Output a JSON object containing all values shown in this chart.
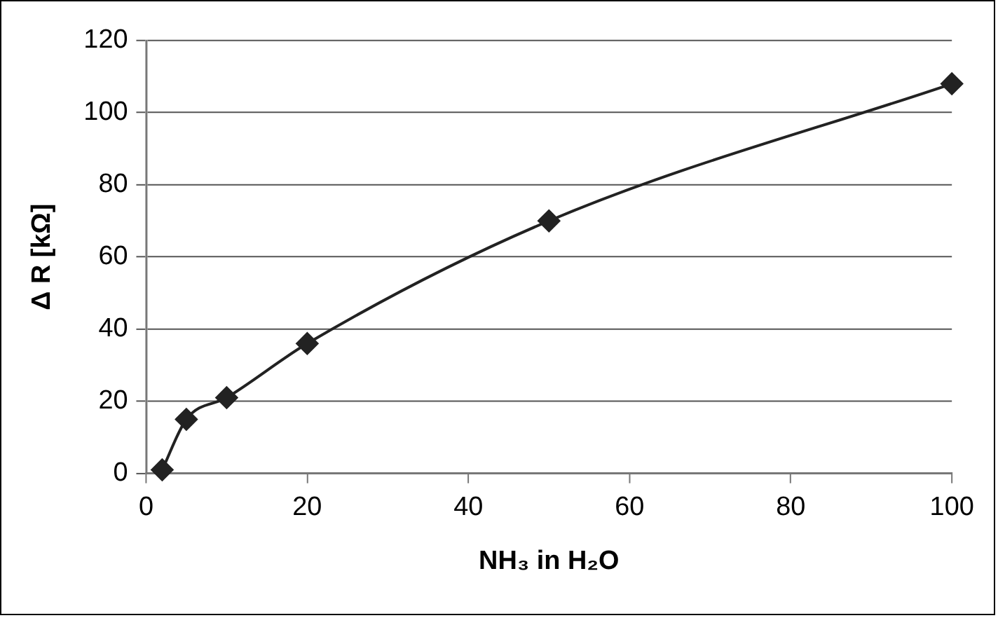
{
  "chart_data": {
    "type": "line",
    "xlabel": "NH₃ in H₂O",
    "ylabel": "Δ R [kΩ]",
    "x": [
      2,
      5,
      10,
      20,
      50,
      100
    ],
    "series": [
      {
        "color": "#222222",
        "values": [
          1,
          15,
          21,
          36,
          70,
          108
        ]
      }
    ],
    "xlim": [
      0,
      100
    ],
    "xticks": [
      0,
      20,
      40,
      60,
      80,
      100
    ],
    "ylim": [
      0,
      120
    ],
    "yticks": [
      0,
      20,
      40,
      60,
      80,
      100,
      120
    ],
    "grid": "y",
    "legend": false,
    "marker": "diamond",
    "line_style": "solid"
  }
}
